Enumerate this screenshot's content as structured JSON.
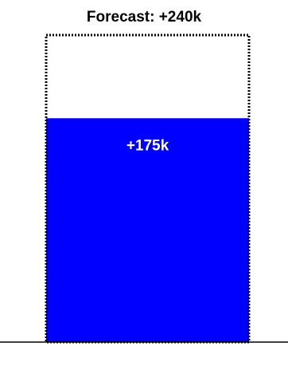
{
  "chart_data": {
    "type": "bar",
    "title": "Forecast: +240k",
    "categories": [
      ""
    ],
    "series": [
      {
        "values": [
          175
        ],
        "color": "#0000ff",
        "label": "+175k"
      }
    ],
    "forecast": {
      "value": 240,
      "style": "dotted-outline",
      "color": "#000000"
    },
    "ylim": [
      0,
      240
    ],
    "grid": false,
    "legend": "none"
  }
}
